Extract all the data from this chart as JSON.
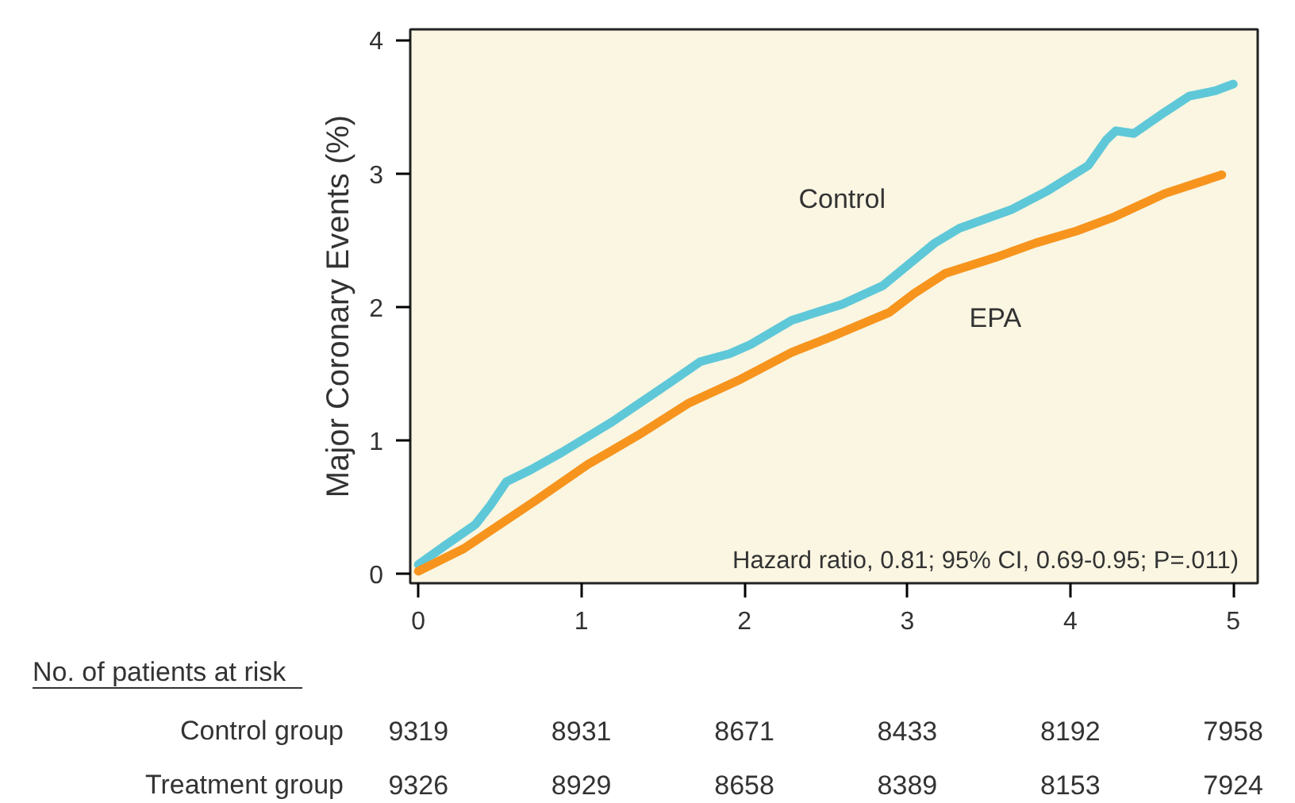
{
  "chart_data": {
    "type": "line",
    "ylabel": "Major Coronary Events (%)",
    "xlim": [
      -0.05,
      5.15
    ],
    "ylim": [
      -0.07,
      4.08
    ],
    "xticks": [
      0,
      1,
      2,
      3,
      4,
      5
    ],
    "yticks": [
      0,
      1,
      2,
      3,
      4
    ],
    "grid": false,
    "legend": false,
    "marker": "none",
    "line_style": "solid",
    "series": [
      {
        "name": "Control",
        "color": "#5fc8d8",
        "x": [
          0,
          0.16,
          0.35,
          0.44,
          0.54,
          0.69,
          0.88,
          1.19,
          1.54,
          1.73,
          1.91,
          2.04,
          2.29,
          2.6,
          2.85,
          3.17,
          3.32,
          3.64,
          3.86,
          4.11,
          4.22,
          4.28,
          4.39,
          4.58,
          4.73,
          4.89,
          5.0
        ],
        "values": [
          0.07,
          0.21,
          0.37,
          0.51,
          0.69,
          0.78,
          0.91,
          1.14,
          1.43,
          1.59,
          1.65,
          1.72,
          1.9,
          2.02,
          2.16,
          2.48,
          2.59,
          2.73,
          2.87,
          3.06,
          3.25,
          3.32,
          3.3,
          3.46,
          3.58,
          3.62,
          3.67
        ]
      },
      {
        "name": "EPA",
        "color": "#f7941d",
        "x": [
          0,
          0.28,
          0.72,
          1.04,
          1.35,
          1.66,
          1.98,
          2.29,
          2.54,
          2.89,
          3.04,
          3.23,
          3.54,
          3.79,
          4.04,
          4.26,
          4.58,
          4.93
        ],
        "values": [
          0.02,
          0.19,
          0.55,
          0.82,
          1.04,
          1.28,
          1.46,
          1.66,
          1.78,
          1.96,
          2.1,
          2.25,
          2.37,
          2.48,
          2.57,
          2.67,
          2.85,
          2.99
        ]
      }
    ],
    "annotations": [
      "Hazard ratio, 0.81; 95% CI, 0.69-0.95; P=.011)",
      "No. of patients at risk",
      "Control group",
      "9319",
      "8931",
      "8671",
      "8433",
      "8192",
      "7958",
      "Treatment group",
      "9326",
      "8929",
      "8658",
      "8389",
      "8153",
      "7924"
    ]
  }
}
